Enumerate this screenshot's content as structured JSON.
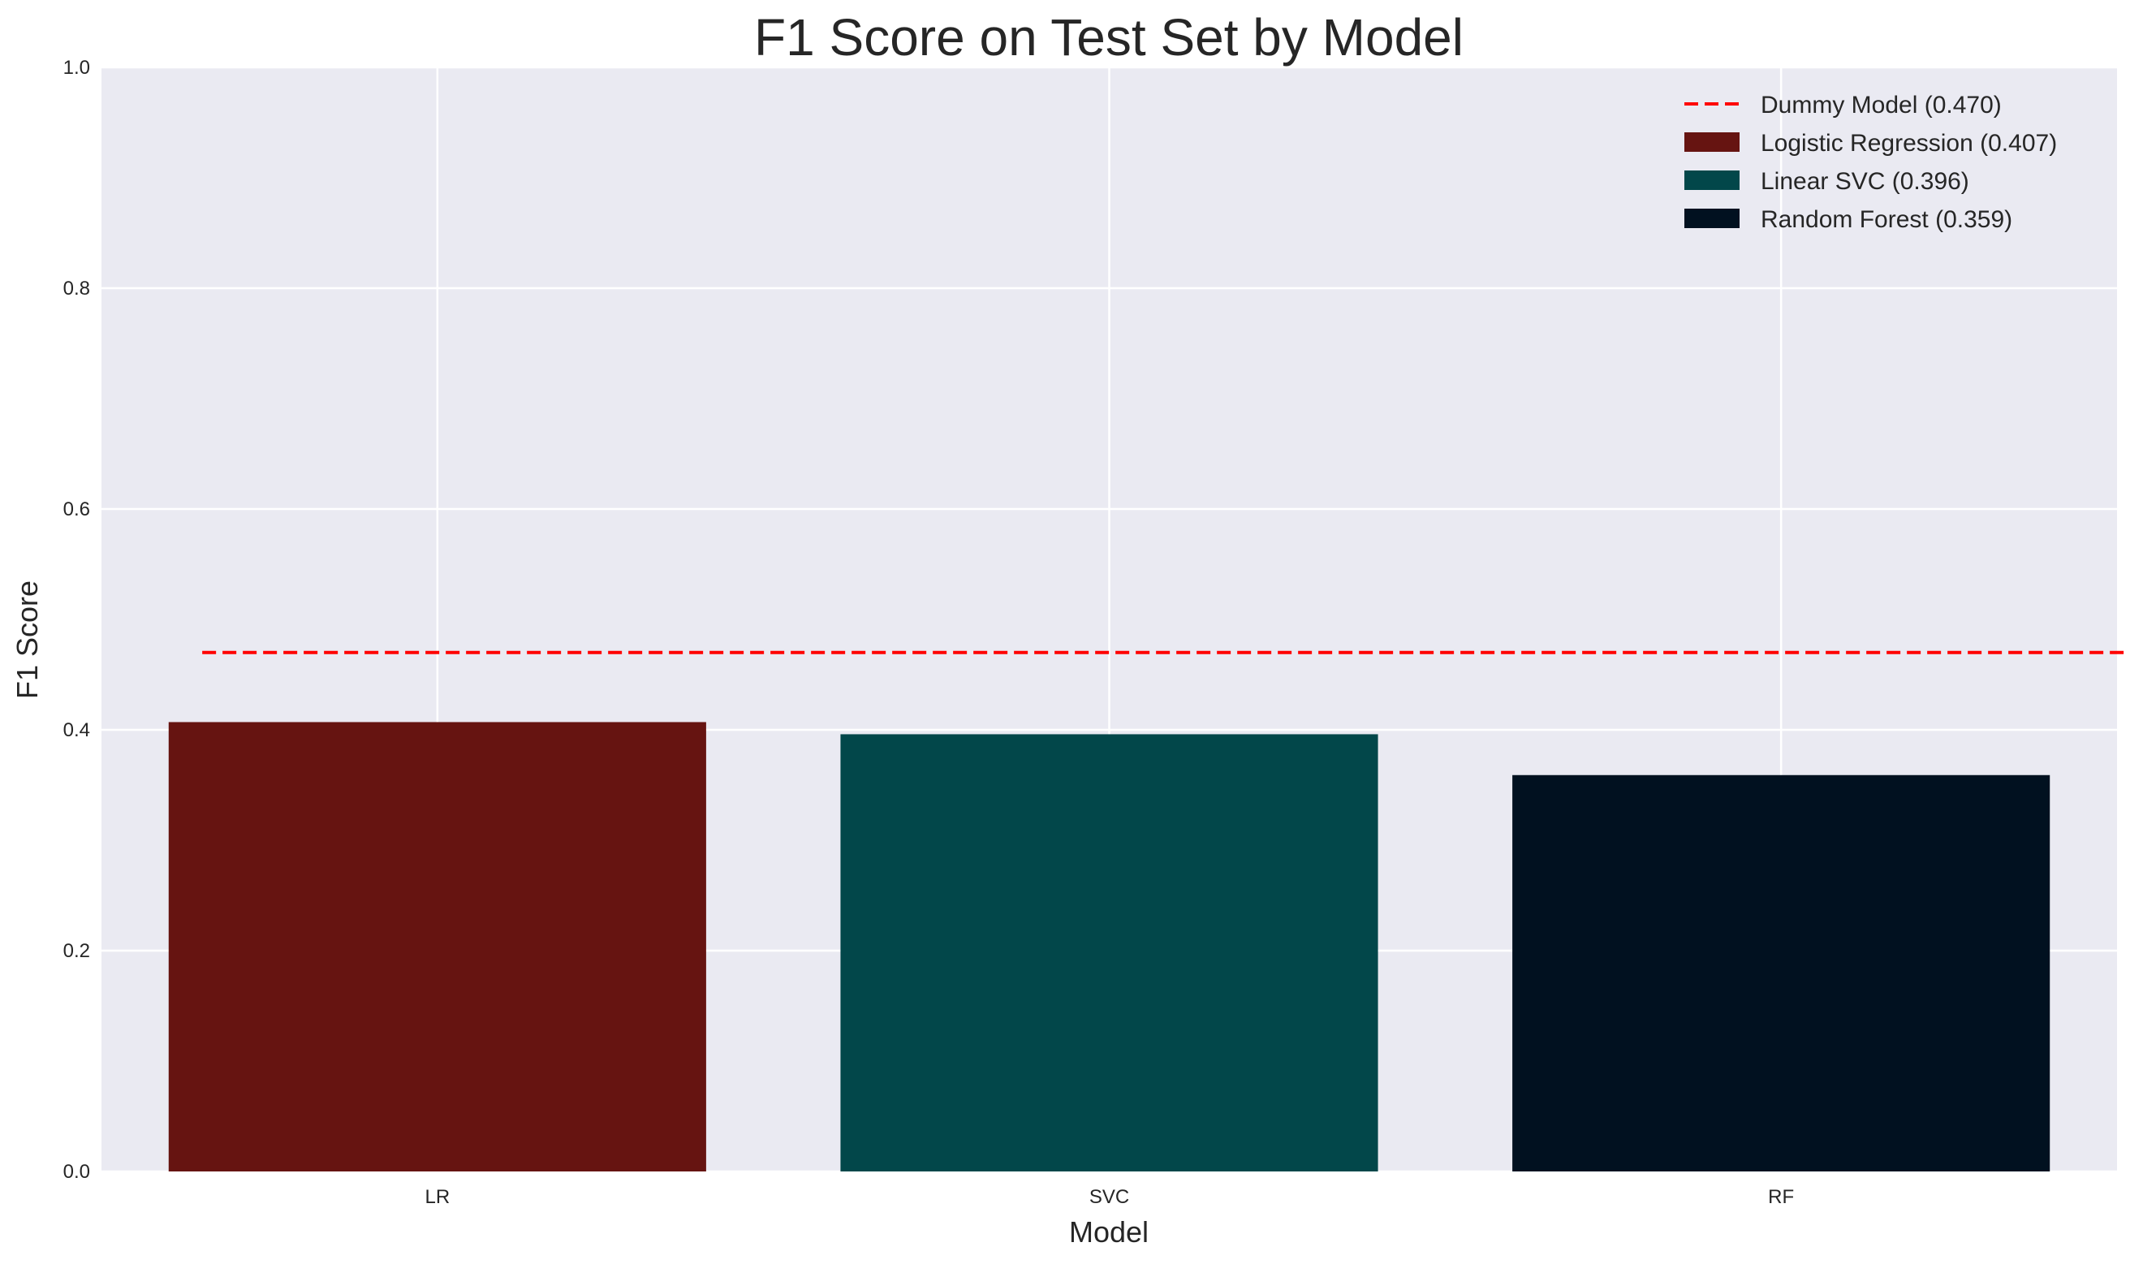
{
  "chart_data": {
    "type": "bar",
    "title": "F1 Score on Test Set by Model",
    "xlabel": "Model",
    "ylabel": "F1 Score",
    "ylim": [
      0,
      1.0
    ],
    "yticks": [
      "0.0",
      "0.2",
      "0.4",
      "0.6",
      "0.8",
      "1.0"
    ],
    "categories": [
      "LR",
      "SVC",
      "RF"
    ],
    "values": [
      0.407,
      0.396,
      0.359
    ],
    "colors": [
      "#661411",
      "#02474a",
      "#011120"
    ],
    "reference_line": {
      "label": "Dummy Model (0.470)",
      "value": 0.47,
      "color": "#ff0000",
      "style": "dashed"
    },
    "legend": {
      "position": "top-right",
      "entries": [
        {
          "label": "Dummy Model (0.470)",
          "kind": "line",
          "color": "#ff0000"
        },
        {
          "label": "Logistic Regression (0.407)",
          "kind": "patch",
          "color": "#661411"
        },
        {
          "label": "Linear SVC (0.396)",
          "kind": "patch",
          "color": "#02474a"
        },
        {
          "label": "Random Forest (0.359)",
          "kind": "patch",
          "color": "#011120"
        }
      ]
    },
    "grid": true,
    "background": "#eaeaf2"
  }
}
